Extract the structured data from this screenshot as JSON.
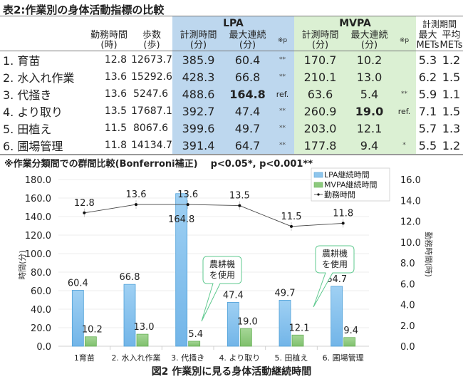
{
  "table": {
    "title": "表2:作業別の身体活動指標の比較",
    "headers": {
      "work_hours": "勤務時間",
      "work_hours_unit": "(時)",
      "steps": "歩数",
      "steps_unit": "(歩)",
      "lpa": "LPA",
      "mvpa": "MVPA",
      "period": "計測期間",
      "measure_time": "計測時間",
      "max_continuous": "最大連続",
      "minutes_unit": "(分)",
      "p_note": "※p",
      "max_mets_1": "最大",
      "max_mets_2": "METs",
      "avg_mets_1": "平均",
      "avg_mets_2": "METs"
    },
    "rows": [
      {
        "name": "1. 育苗",
        "work_hours": "12.8",
        "steps": "12673.7",
        "lpa_time": "385.9",
        "lpa_max": "60.4",
        "lpa_p": "**",
        "mvpa_time": "170.7",
        "mvpa_max": "10.2",
        "mvpa_p": "",
        "max_mets": "5.3",
        "avg_mets": "1.2"
      },
      {
        "name": "2. 水入れ作業",
        "work_hours": "13.6",
        "steps": "15292.6",
        "lpa_time": "428.3",
        "lpa_max": "66.8",
        "lpa_p": "**",
        "mvpa_time": "210.1",
        "mvpa_max": "13.0",
        "mvpa_p": "",
        "max_mets": "6.2",
        "avg_mets": "1.5"
      },
      {
        "name": "3. 代掻き",
        "work_hours": "13.6",
        "steps": "5247.6",
        "lpa_time": "488.6",
        "lpa_max": "164.8",
        "lpa_p": "ref.",
        "mvpa_time": "63.6",
        "mvpa_max": "5.4",
        "mvpa_p": "**",
        "max_mets": "5.9",
        "avg_mets": "1.1"
      },
      {
        "name": "4. より取り",
        "work_hours": "13.5",
        "steps": "17687.1",
        "lpa_time": "392.7",
        "lpa_max": "47.4",
        "lpa_p": "**",
        "mvpa_time": "260.9",
        "mvpa_max": "19.0",
        "mvpa_p": "ref.",
        "max_mets": "7.1",
        "avg_mets": "1.5"
      },
      {
        "name": "5. 田植え",
        "work_hours": "11.5",
        "steps": "8067.6",
        "lpa_time": "399.6",
        "lpa_max": "49.7",
        "lpa_p": "**",
        "mvpa_time": "203.0",
        "mvpa_max": "12.1",
        "mvpa_p": "",
        "max_mets": "5.7",
        "avg_mets": "1.3"
      },
      {
        "name": "6. 圃場管理",
        "work_hours": "11.8",
        "steps": "14134.7",
        "lpa_time": "391.4",
        "lpa_max": "64.7",
        "lpa_p": "**",
        "mvpa_time": "177.8",
        "mvpa_max": "9.4",
        "mvpa_p": "*",
        "max_mets": "5.5",
        "avg_mets": "1.2"
      }
    ],
    "note": "※作業分類間での群間比較(Bonferroni補正)",
    "note_p": "p<0.05*, p<0.001**"
  },
  "colors": {
    "lpa_bg": "#bdd7ee",
    "mvpa_bg": "#dbf0d3",
    "lpa_bar": "#8ec5ec",
    "mvpa_bar": "#8cc97d",
    "callout_border": "#5fc98f"
  },
  "chart_data": {
    "type": "bar",
    "title": "図2 作業別に見る身体活動継続時間",
    "categories": [
      "1育苗",
      "2. 水入れ作業",
      "3. 代掻き",
      "4. より取り",
      "5. 田植え",
      "6. 圃場管理"
    ],
    "series": [
      {
        "name": "LPA継続時間",
        "type": "bar",
        "axis": "left",
        "values": [
          60.4,
          66.8,
          164.8,
          47.4,
          49.7,
          64.7
        ]
      },
      {
        "name": "MVPA継続時間",
        "type": "bar",
        "axis": "left",
        "values": [
          10.2,
          13.0,
          5.4,
          19.0,
          12.1,
          9.4
        ]
      },
      {
        "name": "勤務時間",
        "type": "line",
        "axis": "right",
        "values": [
          12.8,
          13.6,
          13.6,
          13.5,
          11.5,
          11.8
        ]
      }
    ],
    "ylabel": "時間(分)",
    "y2label": "勤務時間(時)",
    "ylim": [
      0,
      180
    ],
    "y2lim": [
      0,
      16
    ],
    "yticks": [
      "0.0",
      "20.0",
      "40.0",
      "60.0",
      "80.0",
      "100.0",
      "120.0",
      "140.0",
      "160.0",
      "180.0"
    ],
    "y2ticks": [
      "0.0",
      "2.0",
      "4.0",
      "6.0",
      "8.0",
      "10.0",
      "12.0",
      "14.0",
      "16.0"
    ],
    "grid": true,
    "legend": "top-right",
    "annotations": [
      {
        "text_line1": "農耕機",
        "text_line2": "を使用",
        "target": "3. 代掻き"
      },
      {
        "text_line1": "農耕機",
        "text_line2": "を使用",
        "target": "5. 田植え"
      }
    ]
  }
}
